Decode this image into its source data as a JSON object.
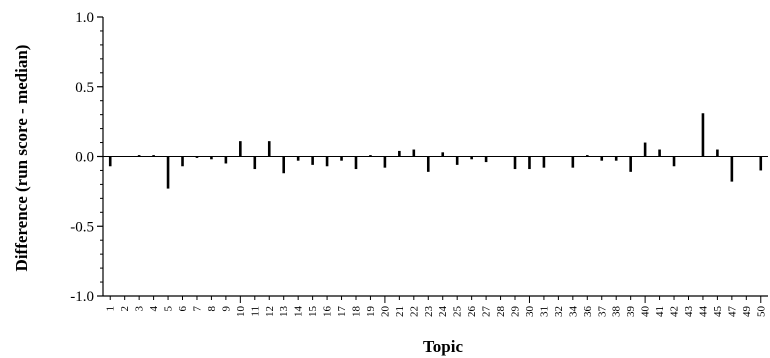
{
  "chart_data": {
    "type": "bar",
    "title": "",
    "xlabel": "Topic",
    "ylabel": "Difference (run score - median)",
    "ylim": [
      -1.0,
      1.0
    ],
    "yticks": [
      -1.0,
      -0.5,
      0.0,
      0.5,
      1.0
    ],
    "ytick_labels": [
      "-1.0",
      "-0.5",
      "0.0",
      "0.5",
      "1.0"
    ],
    "grid": false,
    "legend": "none",
    "bar_color": "#000000",
    "categories": [
      "1",
      "2",
      "3",
      "4",
      "5",
      "6",
      "7",
      "8",
      "9",
      "10",
      "11",
      "12",
      "13",
      "14",
      "15",
      "16",
      "17",
      "18",
      "19",
      "20",
      "21",
      "22",
      "23",
      "24",
      "25",
      "26",
      "27",
      "28",
      "29",
      "30",
      "31",
      "32",
      "34",
      "36",
      "37",
      "38",
      "39",
      "40",
      "41",
      "42",
      "43",
      "44",
      "45",
      "47",
      "49",
      "50"
    ],
    "values": [
      -0.07,
      0.0,
      0.01,
      0.01,
      -0.23,
      -0.07,
      -0.01,
      -0.02,
      -0.05,
      0.11,
      -0.09,
      0.11,
      -0.12,
      -0.03,
      -0.06,
      -0.07,
      -0.03,
      -0.09,
      0.01,
      -0.08,
      0.04,
      0.05,
      -0.11,
      0.03,
      -0.06,
      -0.02,
      -0.04,
      0.0,
      -0.09,
      -0.09,
      -0.08,
      0.0,
      -0.08,
      0.01,
      -0.03,
      -0.03,
      -0.11,
      0.1,
      0.05,
      -0.07,
      0.0,
      0.31,
      0.05,
      -0.18,
      0.0,
      -0.1
    ]
  }
}
